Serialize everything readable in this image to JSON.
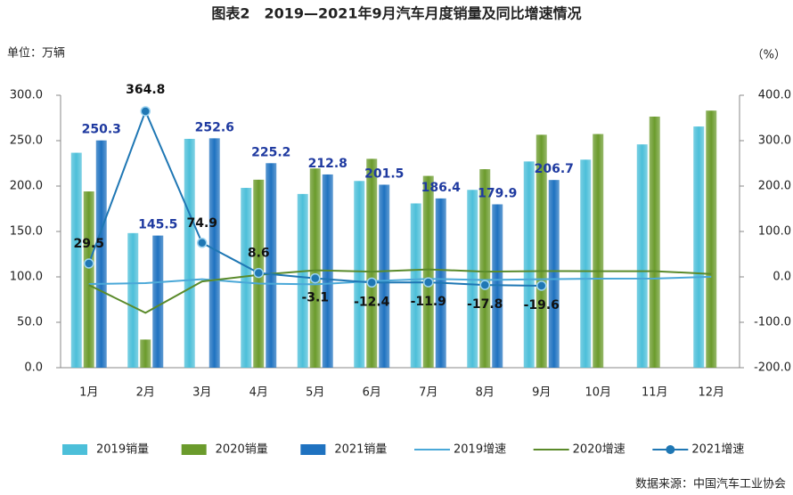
{
  "chart_data": {
    "type": "combo",
    "title": "图表2　2019—2021年9月汽车月度销量及同比增速情况",
    "y_label": "单位：万辆",
    "y2_label": "（%）",
    "source": "数据来源：中国汽车工业协会",
    "categories": [
      "1月",
      "2月",
      "3月",
      "4月",
      "5月",
      "6月",
      "7月",
      "8月",
      "9月",
      "10月",
      "11月",
      "12月"
    ],
    "ylim": [
      0,
      300
    ],
    "yticks": [
      {
        "value": 0,
        "label": "0.0"
      },
      {
        "value": 50,
        "label": "50.0"
      },
      {
        "value": 100,
        "label": "100.0"
      },
      {
        "value": 150,
        "label": "150.0"
      },
      {
        "value": 200,
        "label": "200.0"
      },
      {
        "value": 250,
        "label": "250.0"
      },
      {
        "value": 300,
        "label": "300.0"
      }
    ],
    "y2lim": [
      -200,
      400
    ],
    "y2ticks": [
      {
        "value": -200,
        "label": "-200.0"
      },
      {
        "value": -100,
        "label": "-100.0"
      },
      {
        "value": 0,
        "label": "0.0"
      },
      {
        "value": 100,
        "label": "100.0"
      },
      {
        "value": 200,
        "label": "200.0"
      },
      {
        "value": 300,
        "label": "300.0"
      },
      {
        "value": 400,
        "label": "400.0"
      }
    ],
    "grid": false,
    "series": [
      {
        "name": "2019销量",
        "type": "bar",
        "color": "#4cbfd9",
        "values": [
          236.7,
          148.2,
          252.0,
          198.0,
          191.3,
          205.6,
          180.9,
          195.8,
          227.1,
          229.1,
          245.9,
          265.6
        ]
      },
      {
        "name": "2020销量",
        "type": "bar",
        "color": "#6b9b2c",
        "values": [
          194.1,
          31.0,
          null,
          207.0,
          219.4,
          230.0,
          211.2,
          218.6,
          256.5,
          257.3,
          276.5,
          283.1
        ]
      },
      {
        "name": "2021销量",
        "type": "bar",
        "color": "#1f72c0",
        "label_color": "#1f3aa0",
        "values": [
          250.3,
          145.5,
          252.6,
          225.2,
          212.8,
          201.5,
          186.4,
          179.9,
          206.7,
          null,
          null,
          null
        ],
        "show_labels": true
      },
      {
        "name": "2019增速",
        "type": "line",
        "axis": "y2",
        "color": "#4aa8d8",
        "values": [
          -15.8,
          -13.8,
          -5.2,
          -14.6,
          -16.4,
          -9.6,
          -4.3,
          -6.9,
          -5.2,
          -4.0,
          -3.6,
          0.2
        ]
      },
      {
        "name": "2020增速",
        "type": "line",
        "axis": "y2",
        "color": "#5a8a2a",
        "values": [
          -18.0,
          -79.1,
          -10.0,
          4.4,
          14.5,
          11.6,
          16.4,
          11.6,
          12.8,
          12.5,
          12.6,
          6.4
        ]
      },
      {
        "name": "2021增速",
        "type": "line",
        "axis": "y2",
        "color": "#1f77b4",
        "label_color": "#111",
        "marker": true,
        "values": [
          29.5,
          364.8,
          74.9,
          8.6,
          -3.1,
          -12.4,
          -11.9,
          -17.8,
          -19.6,
          null,
          null,
          null
        ],
        "show_labels": true
      }
    ]
  }
}
